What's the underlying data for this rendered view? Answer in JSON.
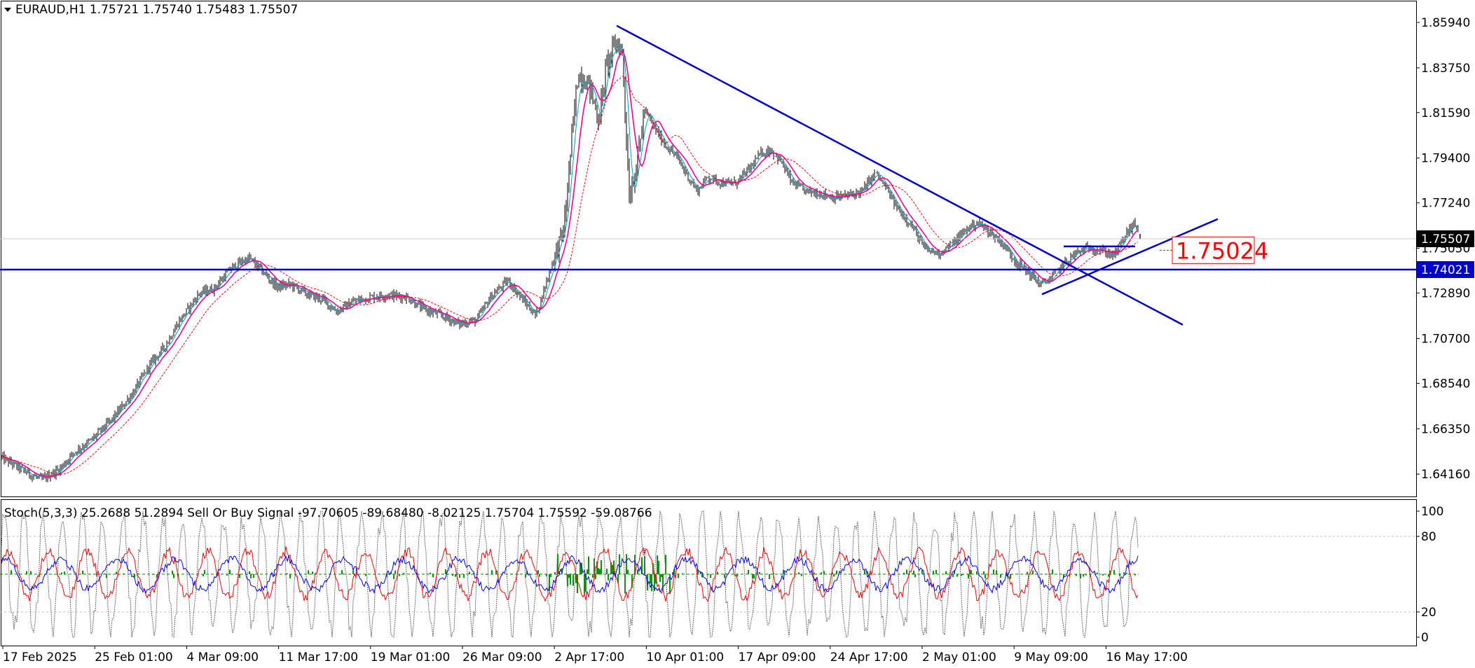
{
  "symbol_header": "EURAUD,H1  1.75721 1.75740 1.75483 1.75507",
  "indicator_header": "Stoch(5,3,3) 25.2688 51.2894  Sell Or Buy Signal -97.70605 -89.68480 -8.02125 1.75704 1.75592 -59.08766",
  "chart_data": {
    "type": "candlestick",
    "symbol": "EURAUD",
    "timeframe": "H1",
    "ohlc": {
      "open": 1.75721,
      "high": 1.7574,
      "low": 1.75483,
      "close": 1.75507
    },
    "price_axis": {
      "ticks": [
        "1.85940",
        "1.83750",
        "1.81590",
        "1.79400",
        "1.77240",
        "1.75050",
        "1.72890",
        "1.70700",
        "1.68540",
        "1.66350",
        "1.64160"
      ],
      "ylim": [
        1.6305,
        1.8702
      ]
    },
    "time_axis": {
      "ticks": [
        "17 Feb 2025",
        "25 Feb 01:00",
        "4 Mar 09:00",
        "11 Mar 17:00",
        "19 Mar 01:00",
        "26 Mar 09:00",
        "2 Apr 17:00",
        "10 Apr 01:00",
        "17 Apr 09:00",
        "24 Apr 17:00",
        "2 May 01:00",
        "9 May 09:00",
        "16 May 17:00"
      ]
    },
    "price_path": [
      [
        0,
        1.65
      ],
      [
        20,
        1.646
      ],
      [
        45,
        1.641
      ],
      [
        60,
        1.639
      ],
      [
        85,
        1.644
      ],
      [
        105,
        1.652
      ],
      [
        130,
        1.658
      ],
      [
        160,
        1.668
      ],
      [
        190,
        1.681
      ],
      [
        215,
        1.695
      ],
      [
        235,
        1.703
      ],
      [
        255,
        1.715
      ],
      [
        270,
        1.722
      ],
      [
        285,
        1.729
      ],
      [
        305,
        1.731
      ],
      [
        330,
        1.741
      ],
      [
        355,
        1.746
      ],
      [
        375,
        1.739
      ],
      [
        395,
        1.732
      ],
      [
        415,
        1.733
      ],
      [
        440,
        1.728
      ],
      [
        460,
        1.726
      ],
      [
        480,
        1.72
      ],
      [
        505,
        1.725
      ],
      [
        530,
        1.727
      ],
      [
        555,
        1.728
      ],
      [
        580,
        1.727
      ],
      [
        605,
        1.721
      ],
      [
        630,
        1.718
      ],
      [
        655,
        1.714
      ],
      [
        680,
        1.716
      ],
      [
        700,
        1.727
      ],
      [
        725,
        1.735
      ],
      [
        745,
        1.726
      ],
      [
        765,
        1.718
      ],
      [
        785,
        1.74
      ],
      [
        805,
        1.76
      ],
      [
        815,
        1.8
      ],
      [
        825,
        1.835
      ],
      [
        840,
        1.83
      ],
      [
        855,
        1.812
      ],
      [
        865,
        1.838
      ],
      [
        880,
        1.85
      ],
      [
        888,
        1.845
      ],
      [
        898,
        1.776
      ],
      [
        908,
        1.79
      ],
      [
        920,
        1.817
      ],
      [
        935,
        1.808
      ],
      [
        950,
        1.8
      ],
      [
        965,
        1.795
      ],
      [
        980,
        1.786
      ],
      [
        995,
        1.778
      ],
      [
        1010,
        1.785
      ],
      [
        1030,
        1.782
      ],
      [
        1050,
        1.782
      ],
      [
        1070,
        1.789
      ],
      [
        1085,
        1.796
      ],
      [
        1100,
        1.798
      ],
      [
        1115,
        1.792
      ],
      [
        1130,
        1.782
      ],
      [
        1150,
        1.778
      ],
      [
        1170,
        1.777
      ],
      [
        1190,
        1.775
      ],
      [
        1210,
        1.776
      ],
      [
        1230,
        1.778
      ],
      [
        1250,
        1.787
      ],
      [
        1265,
        1.779
      ],
      [
        1280,
        1.77
      ],
      [
        1300,
        1.762
      ],
      [
        1320,
        1.75
      ],
      [
        1340,
        1.748
      ],
      [
        1360,
        1.753
      ],
      [
        1380,
        1.76
      ],
      [
        1395,
        1.763
      ],
      [
        1410,
        1.759
      ],
      [
        1430,
        1.753
      ],
      [
        1450,
        1.744
      ],
      [
        1470,
        1.738
      ],
      [
        1485,
        1.733
      ],
      [
        1500,
        1.736
      ],
      [
        1515,
        1.742
      ],
      [
        1535,
        1.748
      ],
      [
        1555,
        1.751
      ],
      [
        1575,
        1.749
      ],
      [
        1590,
        1.747
      ],
      [
        1600,
        1.753
      ],
      [
        1612,
        1.76
      ],
      [
        1620,
        1.762
      ],
      [
        1625,
        1.759
      ]
    ],
    "stochastic": {
      "name": "Stoch(5,3,3)",
      "main": 25.2688,
      "signal": 51.2894,
      "levels": [
        20,
        80
      ],
      "axis_ticks": [
        "100",
        "80",
        "20",
        "0"
      ]
    },
    "signal_indicator": {
      "name": "Sell Or Buy Signal",
      "values": [
        -97.70605,
        -89.6848,
        -8.02125,
        1.75704,
        1.75592,
        -59.08766
      ]
    },
    "annotations": {
      "horizontal_support": 1.74021,
      "horizontal_support_label": "1.74021",
      "current_price": 1.75507,
      "current_price_label": "1.75507",
      "box_level": 1.75024,
      "box_label": "1.75024",
      "descending_trendline": {
        "from": [
          880,
          1.8578
        ],
        "to": [
          1688,
          1.7136
        ]
      },
      "ascending_trendline": {
        "from": [
          1487,
          1.7283
        ],
        "to": [
          1738,
          1.7646
        ]
      },
      "short_resistance": {
        "from": [
          1518,
          1.7514
        ],
        "to": [
          1620,
          1.7514
        ]
      }
    },
    "colors": {
      "candles": "#000000",
      "trendlines": "#0000cc",
      "ma_fast": "#ff0090",
      "ma_slow": "#ff0000",
      "stoch_main": "#6a6a6a",
      "stoch_signal_a": "#ff0000",
      "stoch_signal_b": "#0000ff",
      "histogram": "#009900",
      "price_badge": "#000000",
      "support_badge": "#0000cc",
      "box_label_text": "#ff0000"
    }
  }
}
